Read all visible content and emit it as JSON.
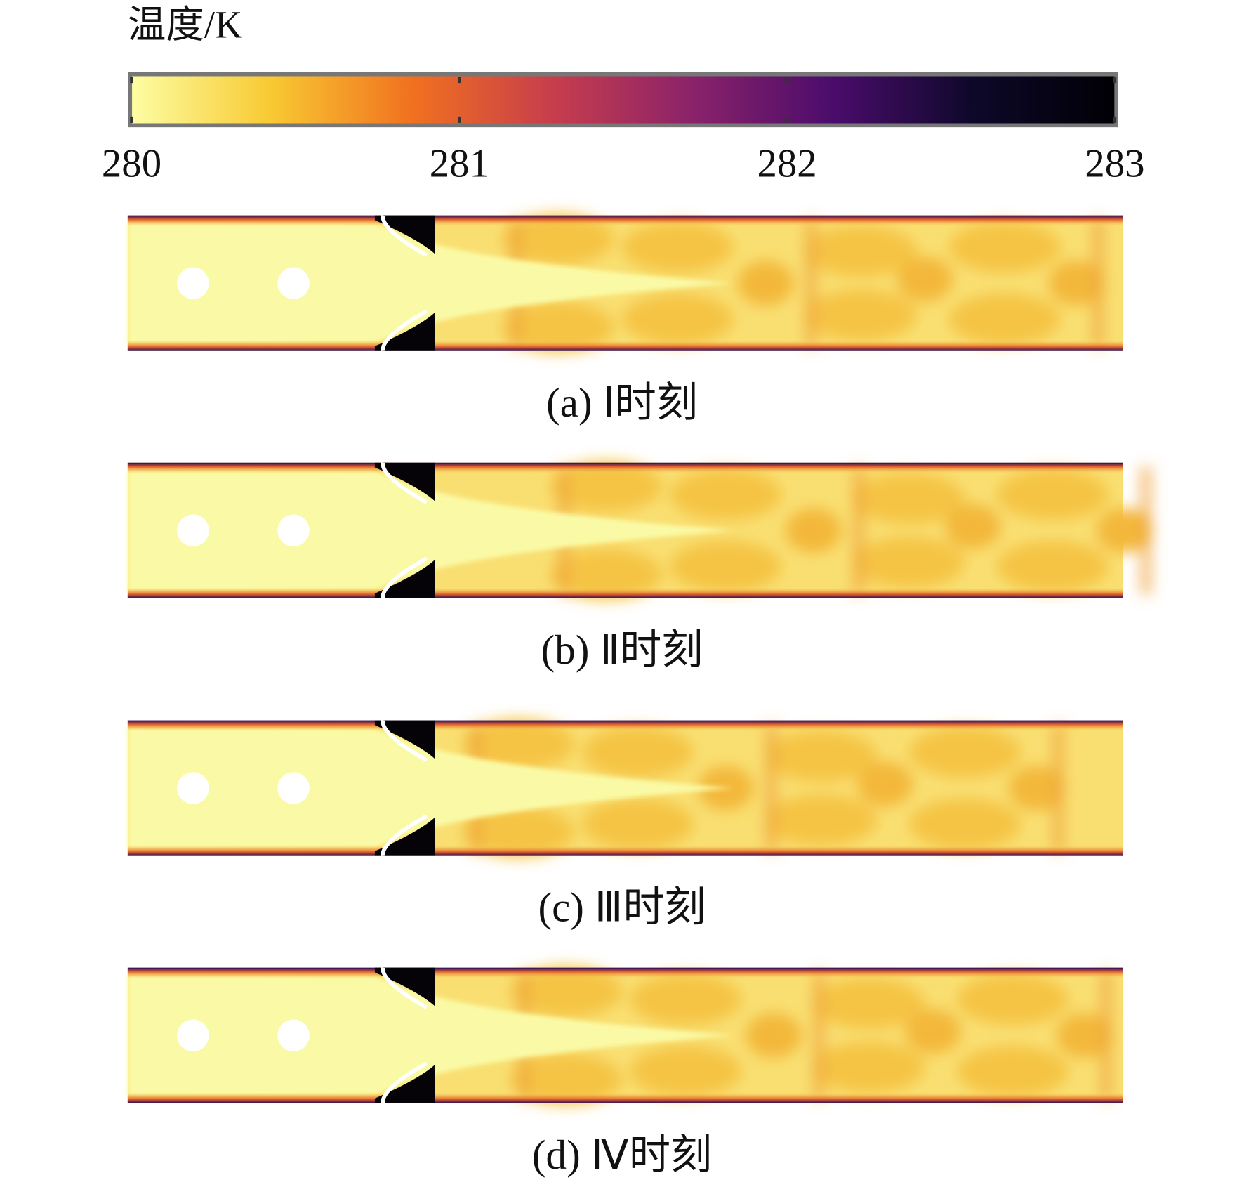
{
  "colorbar": {
    "label": "温度/K",
    "lim": [
      280,
      283
    ],
    "ticks": [
      280,
      281,
      282,
      283
    ],
    "colormap": [
      "#fcfea4",
      "#f8c932",
      "#f1711f",
      "#c73d4c",
      "#8a226a",
      "#4a0c6b",
      "#0d0829",
      "#000004"
    ]
  },
  "panels": [
    {
      "caption": "(a) Ⅰ时刻"
    },
    {
      "caption": "(b) Ⅱ时刻"
    },
    {
      "caption": "(c) Ⅲ时刻"
    },
    {
      "caption": "(d) Ⅳ时刻"
    }
  ]
}
